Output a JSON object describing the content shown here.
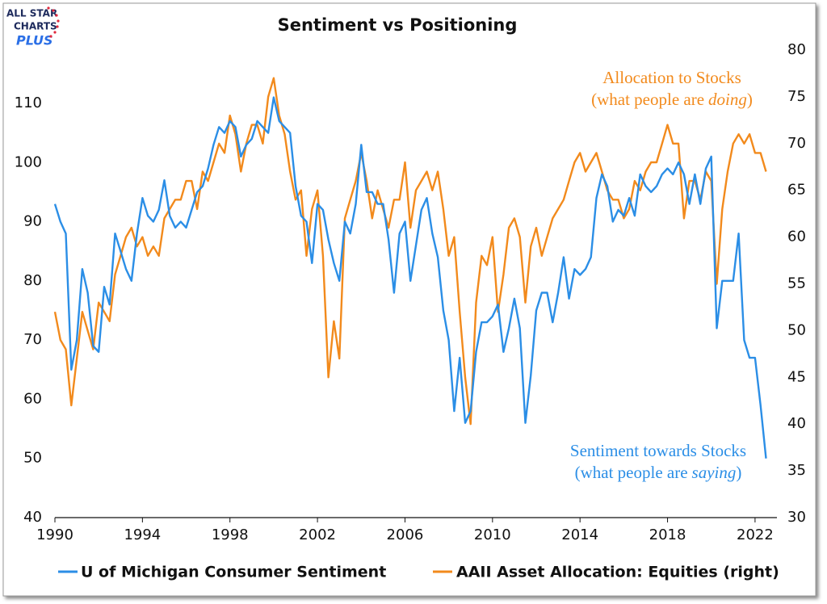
{
  "logo": {
    "line1": "ALL STAR",
    "line2": "CHARTS",
    "line3": "PLUS"
  },
  "chart_data": {
    "type": "line",
    "title": "Sentiment vs Positioning",
    "x": [
      1990,
      1990.25,
      1990.5,
      1990.75,
      1991,
      1991.25,
      1991.5,
      1991.75,
      1992,
      1992.25,
      1992.5,
      1992.75,
      1993,
      1993.25,
      1993.5,
      1993.75,
      1994,
      1994.25,
      1994.5,
      1994.75,
      1995,
      1995.25,
      1995.5,
      1995.75,
      1996,
      1996.25,
      1996.5,
      1996.75,
      1997,
      1997.25,
      1997.5,
      1997.75,
      1998,
      1998.25,
      1998.5,
      1998.75,
      1999,
      1999.25,
      1999.5,
      1999.75,
      2000,
      2000.25,
      2000.5,
      2000.75,
      2001,
      2001.25,
      2001.5,
      2001.75,
      2002,
      2002.25,
      2002.5,
      2002.75,
      2003,
      2003.25,
      2003.5,
      2003.75,
      2004,
      2004.25,
      2004.5,
      2004.75,
      2005,
      2005.25,
      2005.5,
      2005.75,
      2006,
      2006.25,
      2006.5,
      2006.75,
      2007,
      2007.25,
      2007.5,
      2007.75,
      2008,
      2008.25,
      2008.5,
      2008.75,
      2009,
      2009.25,
      2009.5,
      2009.75,
      2010,
      2010.25,
      2010.5,
      2010.75,
      2011,
      2011.25,
      2011.5,
      2011.75,
      2012,
      2012.25,
      2012.5,
      2012.75,
      2013,
      2013.25,
      2013.5,
      2013.75,
      2014,
      2014.25,
      2014.5,
      2014.75,
      2015,
      2015.25,
      2015.5,
      2015.75,
      2016,
      2016.25,
      2016.5,
      2016.75,
      2017,
      2017.25,
      2017.5,
      2017.75,
      2018,
      2018.25,
      2018.5,
      2018.75,
      2019,
      2019.25,
      2019.5,
      2019.75,
      2020,
      2020.25,
      2020.5,
      2020.75,
      2021,
      2021.25,
      2021.5,
      2021.75,
      2022,
      2022.25,
      2022.5
    ],
    "series": [
      {
        "name": "U of Michigan Consumer Sentiment",
        "color": "#2b8ee6",
        "axis": "y",
        "values": [
          93,
          90,
          88,
          65,
          70,
          82,
          78,
          69,
          68,
          79,
          76,
          88,
          85,
          82,
          80,
          88,
          94,
          91,
          90,
          92,
          97,
          91,
          89,
          90,
          89,
          92,
          95,
          96,
          99,
          103,
          106,
          105,
          107,
          106,
          101,
          103,
          104,
          107,
          106,
          105,
          111,
          107,
          106,
          105,
          96,
          91,
          90,
          83,
          93,
          92,
          87,
          83,
          80,
          90,
          88,
          93,
          103,
          95,
          95,
          93,
          93,
          87,
          78,
          88,
          90,
          80,
          86,
          92,
          94,
          88,
          84,
          75,
          70,
          58,
          67,
          56,
          58,
          68,
          73,
          73,
          74,
          76,
          68,
          72,
          77,
          72,
          56,
          64,
          75,
          78,
          78,
          73,
          78,
          84,
          77,
          82,
          81,
          82,
          84,
          94,
          98,
          96,
          90,
          92,
          91,
          94,
          91,
          98,
          96,
          95,
          96,
          98,
          99,
          98,
          100,
          98,
          93,
          98,
          93,
          99,
          101,
          72,
          80,
          80,
          80,
          88,
          70,
          67,
          67,
          59,
          50
        ]
      },
      {
        "name": "AAII Asset Allocation: Equities (right)",
        "color": "#f28a1c",
        "axis": "y2",
        "values": [
          52,
          49,
          48,
          42,
          47,
          52,
          50,
          48,
          53,
          52,
          51,
          56,
          58,
          60,
          61,
          59,
          60,
          58,
          59,
          58,
          62,
          63,
          64,
          64,
          66,
          66,
          63,
          67,
          66,
          68,
          70,
          69,
          73,
          71,
          67,
          70,
          72,
          72,
          70,
          75,
          77,
          73,
          71,
          67,
          64,
          65,
          58,
          63,
          65,
          58,
          45,
          51,
          47,
          62,
          64,
          66,
          69,
          66,
          62,
          65,
          63,
          61,
          64,
          64,
          68,
          61,
          65,
          66,
          67,
          65,
          67,
          63,
          58,
          60,
          52,
          45,
          40,
          53,
          58,
          57,
          60,
          52,
          56,
          61,
          62,
          60,
          53,
          59,
          61,
          58,
          60,
          62,
          63,
          64,
          66,
          68,
          69,
          67,
          68,
          69,
          67,
          65,
          64,
          64,
          62,
          63,
          66,
          65,
          67,
          68,
          68,
          70,
          72,
          70,
          70,
          62,
          66,
          66,
          64,
          67,
          66,
          55,
          63,
          67,
          70,
          71,
          70,
          71,
          69,
          69,
          67
        ]
      }
    ],
    "xlim": [
      1990,
      2023
    ],
    "xticks": [
      1990,
      1994,
      1998,
      2002,
      2006,
      2010,
      2014,
      2018,
      2022
    ],
    "ylim": [
      40,
      119
    ],
    "yticks": [
      40,
      50,
      60,
      70,
      80,
      90,
      100,
      110
    ],
    "y2lim": [
      30,
      80
    ],
    "y2ticks": [
      30,
      35,
      40,
      45,
      50,
      55,
      60,
      65,
      70,
      75,
      80
    ],
    "annotations": [
      {
        "text": "Allocation to Stocks",
        "note": [
          "(what people are",
          "doing",
          ")"
        ],
        "color": "#f28a1c"
      },
      {
        "text": "Sentiment towards Stocks",
        "note": [
          "(what people are",
          "saying",
          ")"
        ],
        "color": "#2b8ee6"
      }
    ]
  }
}
